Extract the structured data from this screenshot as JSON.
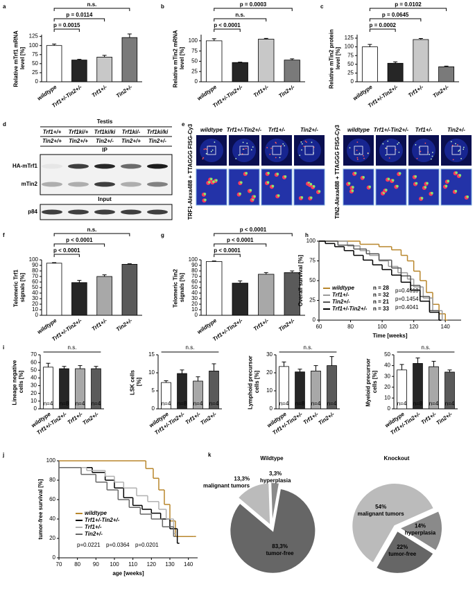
{
  "panel_letters": [
    "a",
    "b",
    "c",
    "d",
    "e",
    "f",
    "g",
    "h",
    "i",
    "j",
    "k"
  ],
  "blot": {
    "title": "Testis",
    "trf1_genotypes": [
      "Trf1+/+",
      "Trf1ki/+",
      "Trf1ki/ki",
      "Trf1ki/-",
      "Trf1ki/ki"
    ],
    "tin2_genotypes": [
      "Tin2+/+",
      "Tin2+/+",
      "Tin2+/-",
      "Tin2+/+",
      "Tin2+/-"
    ],
    "ip_label": "IP",
    "input_label": "Input",
    "rows": [
      "HA-mTrf1",
      "mTin2",
      "p84"
    ]
  },
  "micrographs": {
    "genotypes": [
      "wildtype",
      "Trf1+/-Tin2+/-",
      "Trf1+/-",
      "Tin2+/-"
    ],
    "stain_labels": [
      "TRF1-Alexa488 + TTAGGG FISG-Cy3",
      "TIN2-Alexa488 + TTAGGG FISG-Cy3"
    ]
  },
  "chart_data": [
    {
      "type": "bar",
      "ylabel": "Relative mTrf1 mRNA level [%]",
      "categories": [
        "wildtype",
        "Trf1+/-Tin2+/-",
        "Trf1+/-",
        "Tin2+/-"
      ],
      "values": [
        100,
        60,
        68,
        122
      ],
      "errors": [
        4,
        2,
        5,
        10
      ],
      "colors": [
        "#ffffff",
        "#262626",
        "#c8c8c8",
        "#7a7a7a"
      ],
      "ylim": [
        0,
        130
      ],
      "yticks": [
        0,
        25,
        50,
        75,
        100,
        125
      ],
      "comparisons": [
        null,
        "p = 0.0015",
        "p = 0.0114",
        "n.s."
      ]
    },
    {
      "type": "bar",
      "ylabel": "Relative mTin2 mRNA level [%]",
      "categories": [
        "wildtype",
        "Trf1+/-Tin2+/-",
        "Trf1+/-",
        "Tin2+/-"
      ],
      "values": [
        100,
        47,
        104,
        53
      ],
      "errors": [
        5,
        1,
        2,
        3
      ],
      "colors": [
        "#ffffff",
        "#262626",
        "#c8c8c8",
        "#7a7a7a"
      ],
      "ylim": [
        0,
        115
      ],
      "yticks": [
        0,
        25,
        50,
        75,
        100
      ],
      "comparisons": [
        null,
        "p < 0.0001",
        "n.s.",
        "p = 0.0003"
      ]
    },
    {
      "type": "bar",
      "ylabel": "Relative mTin2 protein level [%]",
      "categories": [
        "wildtype",
        "Trf1+/-Tin2+/-",
        "Trf1+/-",
        "Tin2+/-"
      ],
      "values": [
        100,
        53,
        121,
        43
      ],
      "errors": [
        7,
        4,
        3,
        2
      ],
      "colors": [
        "#ffffff",
        "#262626",
        "#c8c8c8",
        "#7a7a7a"
      ],
      "ylim": [
        0,
        135
      ],
      "yticks": [
        0,
        25,
        50,
        75,
        100,
        125
      ],
      "comparisons": [
        null,
        "p = 0.0002",
        "p = 0.0645",
        "p = 0.0102"
      ]
    },
    {
      "type": "bar",
      "ylabel": "Telomeric Trf1 signals [%]",
      "categories": [
        "wildtype",
        "Trf1+/-Tin2+/-",
        "Trf1+/-",
        "Tin2+/-"
      ],
      "values": [
        94,
        59,
        70,
        92
      ],
      "errors": [
        1,
        4,
        3,
        1
      ],
      "colors": [
        "#ffffff",
        "#262626",
        "#a8a8a8",
        "#5a5a5a"
      ],
      "ylim": [
        0,
        100
      ],
      "yticks": [
        0,
        10,
        20,
        30,
        40,
        50,
        60,
        70,
        80,
        90,
        100
      ],
      "comparisons": [
        null,
        "p < 0.0001",
        "p < 0.0001",
        "n.s."
      ]
    },
    {
      "type": "bar",
      "ylabel": "Telomeric Tin2 signals [%]",
      "categories": [
        "wildtype",
        "Trf1+/-Tin2+/-",
        "Trf1+/-",
        "Tin2+/-"
      ],
      "values": [
        97,
        58,
        74,
        77
      ],
      "errors": [
        1,
        4,
        3,
        3
      ],
      "colors": [
        "#ffffff",
        "#262626",
        "#a8a8a8",
        "#5a5a5a"
      ],
      "ylim": [
        0,
        100
      ],
      "yticks": [
        0,
        10,
        20,
        30,
        40,
        50,
        60,
        70,
        80,
        90,
        100
      ],
      "comparisons": [
        null,
        "p < 0.0001",
        "p < 0.0001",
        "p < 0.0001"
      ]
    },
    {
      "type": "step",
      "ylabel": "Overall survival [%]",
      "xlabel": "Time [weeks]",
      "xlim": [
        60,
        150
      ],
      "xticks": [
        60,
        80,
        100,
        120,
        140
      ],
      "ylim": [
        0,
        100
      ],
      "yticks": [
        0,
        25,
        50,
        75,
        100
      ],
      "series": [
        {
          "name": "wildtype",
          "n_label": "n = 28",
          "color": "#b8862b",
          "x": [
            60,
            86,
            98,
            106,
            112,
            116,
            120,
            124,
            128,
            132,
            136,
            140
          ],
          "values": [
            100,
            96,
            93,
            89,
            82,
            75,
            62,
            50,
            35,
            20,
            8,
            0
          ]
        },
        {
          "name": "Trf1+/-",
          "n_label": "n = 32",
          "color": "#9a9a9a",
          "x": [
            60,
            78,
            86,
            92,
            98,
            104,
            110,
            116,
            120,
            126,
            132,
            138
          ],
          "values": [
            100,
            94,
            88,
            82,
            75,
            68,
            60,
            52,
            42,
            28,
            12,
            0
          ]
        },
        {
          "name": "Tin2+/-",
          "n_label": "n = 21",
          "color": "#555555",
          "x": [
            60,
            72,
            82,
            90,
            98,
            106,
            112,
            118,
            124,
            130,
            136
          ],
          "values": [
            100,
            95,
            90,
            84,
            76,
            66,
            56,
            44,
            30,
            12,
            0
          ]
        },
        {
          "name": "Trf1+/-Tin2+/-",
          "n_label": "n = 33",
          "color": "#000000",
          "x": [
            60,
            64,
            70,
            76,
            82,
            88,
            94,
            100,
            106,
            112,
            118,
            124,
            130,
            136
          ],
          "values": [
            100,
            97,
            93,
            88,
            82,
            76,
            70,
            64,
            57,
            48,
            38,
            24,
            10,
            0
          ]
        }
      ],
      "p_values": [
        "p=0.4618",
        "p=0.1454",
        "p=0.4041"
      ]
    },
    {
      "type": "bar",
      "ylabel": "Lineage negative cells [%]",
      "categories": [
        "wildtype",
        "Trf1+/-Tin2+/-",
        "Trf1+/-",
        "Tin2+/-"
      ],
      "values": [
        54,
        52,
        52,
        52
      ],
      "errors": [
        5,
        3,
        4,
        3
      ],
      "colors": [
        "#ffffff",
        "#262626",
        "#a8a8a8",
        "#5a5a5a"
      ],
      "ylim": [
        0,
        70
      ],
      "yticks": [
        0,
        10,
        20,
        30,
        40,
        50,
        60,
        70
      ],
      "bar_labels": [
        "n=4",
        "n=8",
        "n=4",
        "n=4"
      ],
      "span_label": "n.s."
    },
    {
      "type": "bar",
      "ylabel": "LSK cells [%]",
      "categories": [
        "wildtype",
        "Trf1+/-Tin2+/-",
        "Trf1+/-",
        "Tin2+/-"
      ],
      "values": [
        7.3,
        9.8,
        7.7,
        10.5
      ],
      "errors": [
        0.5,
        1,
        1.2,
        2
      ],
      "colors": [
        "#ffffff",
        "#262626",
        "#a8a8a8",
        "#5a5a5a"
      ],
      "ylim": [
        0,
        15
      ],
      "yticks": [
        0,
        5,
        10,
        15
      ],
      "bar_labels": [
        "n=4",
        "n=8",
        "n=4",
        "n=4"
      ],
      "span_label": "n.s."
    },
    {
      "type": "bar",
      "ylabel": "Lymphoid precursor cells [%]",
      "categories": [
        "wildtype",
        "Trf1+/-Tin2+/-",
        "Trf1+/-",
        "Tin2+/-"
      ],
      "values": [
        23.5,
        20.5,
        21,
        24
      ],
      "errors": [
        2.5,
        1.5,
        3,
        5
      ],
      "colors": [
        "#ffffff",
        "#262626",
        "#a8a8a8",
        "#5a5a5a"
      ],
      "ylim": [
        0,
        30
      ],
      "yticks": [
        0,
        10,
        20,
        30
      ],
      "bar_labels": [
        "n=4",
        "n=8",
        "n=4",
        "n=4"
      ],
      "span_label": "n.s."
    },
    {
      "type": "bar",
      "ylabel": "Myeloid precursor cells [%]",
      "categories": [
        "wildtype",
        "Trf1+/-Tin2+/-",
        "Trf1+/-",
        "Tin2+/-"
      ],
      "values": [
        36,
        42,
        39,
        34
      ],
      "errors": [
        5,
        5,
        5,
        2
      ],
      "colors": [
        "#ffffff",
        "#262626",
        "#a8a8a8",
        "#5a5a5a"
      ],
      "ylim": [
        0,
        50
      ],
      "yticks": [
        0,
        10,
        20,
        30,
        40,
        50
      ],
      "bar_labels": [
        "n=4",
        "n=8",
        "n=4",
        "n=4"
      ],
      "span_label": "n.s."
    },
    {
      "type": "step",
      "ylabel": "tumor-free survival [%]",
      "xlabel": "age [weeks]",
      "xlim": [
        70,
        145
      ],
      "xticks": [
        70,
        80,
        90,
        100,
        110,
        120,
        130,
        140
      ],
      "ylim": [
        0,
        100
      ],
      "yticks": [
        0,
        20,
        40,
        60,
        80,
        100
      ],
      "series": [
        {
          "name": "wildtype",
          "color": "#b8862b",
          "x": [
            70,
            117,
            121,
            124,
            127,
            130,
            133,
            143
          ],
          "values": [
            100,
            92,
            82,
            70,
            55,
            38,
            22,
            22
          ]
        },
        {
          "name": "Trf1+/-Tin2+/-",
          "color": "#000000",
          "x": [
            70,
            88,
            95,
            100,
            105,
            110,
            115,
            120,
            125,
            130,
            134
          ],
          "values": [
            93,
            88,
            80,
            72,
            62,
            54,
            50,
            46,
            40,
            30,
            15
          ]
        },
        {
          "name": "Trf1+/-",
          "color": "#b0b0b0",
          "x": [
            70,
            85,
            95,
            100,
            105,
            112,
            118,
            124,
            128,
            132
          ],
          "values": [
            93,
            90,
            84,
            78,
            72,
            64,
            58,
            50,
            40,
            25
          ]
        },
        {
          "name": "Tin2+/-",
          "color": "#666666",
          "x": [
            70,
            82,
            90,
            96,
            102,
            108,
            114,
            120,
            126,
            132
          ],
          "values": [
            93,
            86,
            78,
            70,
            60,
            52,
            45,
            40,
            32,
            22
          ]
        }
      ],
      "p_values": [
        "p=0.0221",
        "p=0.0364",
        "p=0.0201"
      ]
    },
    {
      "type": "pie",
      "title": "Wildtype",
      "categories": [
        "tumor-free",
        "malignant tumors",
        "hyperplasia"
      ],
      "values": [
        83.3,
        13.3,
        3.3
      ],
      "value_labels": [
        "83,3%",
        "13,3%",
        "3,3%"
      ],
      "colors": [
        "#666666",
        "#bbbbbb",
        "#8a8a8a"
      ]
    },
    {
      "type": "pie",
      "title": "Knockout",
      "categories": [
        "malignant tumors",
        "hyperplasia",
        "tumor-free"
      ],
      "values": [
        54,
        14,
        22
      ],
      "value_labels": [
        "54%",
        "14%",
        "22%"
      ],
      "colors": [
        "#bbbbbb",
        "#8a8a8a",
        "#666666"
      ]
    }
  ]
}
